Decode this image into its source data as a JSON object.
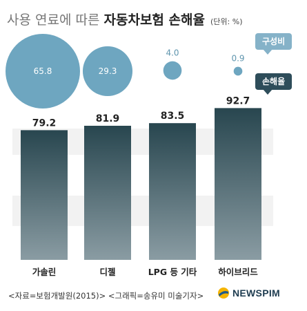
{
  "title": {
    "light": "사용 연료에 따른",
    "bold": "자동차보험 손해율",
    "unit": "(단위: %)"
  },
  "legend": {
    "share": "구성비",
    "loss": "손해율"
  },
  "chart_data": {
    "type": "bar",
    "categories": [
      "가솔린",
      "디젤",
      "LPG 등 기타",
      "하이브리드"
    ],
    "series": [
      {
        "name": "손해율",
        "values": [
          79.2,
          81.9,
          83.5,
          92.7
        ],
        "kind": "bar"
      },
      {
        "name": "구성비",
        "values": [
          65.8,
          29.3,
          4.0,
          0.9
        ],
        "kind": "bubble"
      }
    ],
    "title": "사용 연료에 따른 자동차보험 손해율",
    "unit": "(단위: %)",
    "legend_position": "top-right",
    "colors": {
      "bar_top": "#28464f",
      "bar_bottom": "#8a9ca3",
      "bubble": "#6ea6c0",
      "band": "#f2f2f2"
    }
  },
  "footer": {
    "source": "<자료=보험개발원(2015)> <그래픽=송유미 미술기자>",
    "brand": "NEWSPIM",
    "logo_icon": "newspim-logo-icon"
  }
}
